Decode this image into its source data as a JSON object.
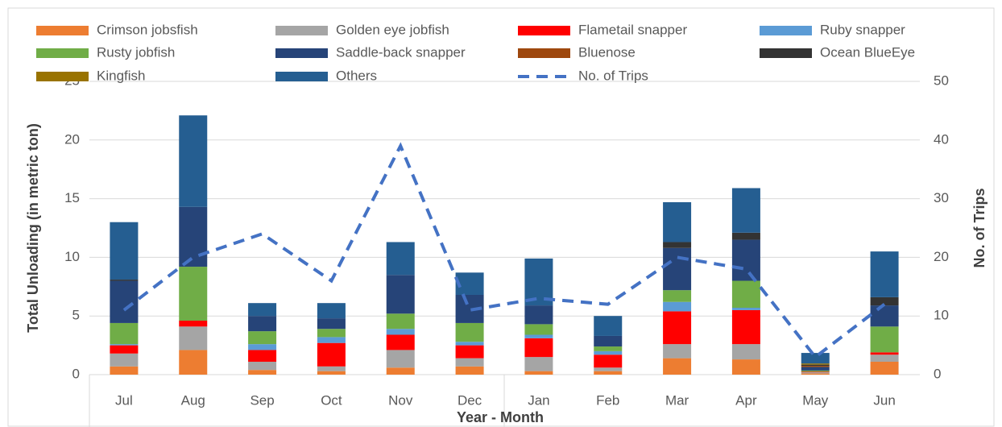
{
  "chart_data": {
    "type": "bar",
    "stacked": true,
    "x_label": "Year - Month",
    "y_label": "Total Unloading (in metric ton)",
    "y2_label": "No. of Trips",
    "categories": [
      "Jul",
      "Aug",
      "Sep",
      "Oct",
      "Nov",
      "Dec",
      "Jan",
      "Feb",
      "Mar",
      "Apr",
      "May",
      "Jun"
    ],
    "series": [
      {
        "name": "Crimson jobsfish",
        "color": "#ED7D31",
        "values": [
          0.7,
          2.1,
          0.4,
          0.3,
          0.6,
          0.7,
          0.3,
          0.3,
          1.4,
          1.3,
          0.1,
          1.1
        ]
      },
      {
        "name": "Golden eye jobfish",
        "color": "#A5A5A5",
        "values": [
          1.1,
          2.0,
          0.7,
          0.4,
          1.5,
          0.7,
          1.2,
          0.3,
          1.2,
          1.3,
          0.1,
          0.6
        ]
      },
      {
        "name": "Flametail snapper",
        "color": "#FF0000",
        "values": [
          0.7,
          0.5,
          1.0,
          2.0,
          1.3,
          1.1,
          1.6,
          1.1,
          2.8,
          2.9,
          0.05,
          0.2
        ]
      },
      {
        "name": "Ruby snapper",
        "color": "#5B9BD5",
        "values": [
          0.1,
          0,
          0.5,
          0.5,
          0.5,
          0.3,
          0.3,
          0.3,
          0.8,
          0.2,
          0,
          0
        ]
      },
      {
        "name": "Rusty jobfish",
        "color": "#70AD47",
        "values": [
          1.8,
          4.6,
          1.1,
          0.7,
          1.3,
          1.6,
          0.9,
          0.4,
          1.0,
          2.3,
          0.1,
          2.2
        ]
      },
      {
        "name": "Saddle-back snapper",
        "color": "#264478",
        "values": [
          3.6,
          5.1,
          1.3,
          0.9,
          3.3,
          2.4,
          1.6,
          0.9,
          3.6,
          3.5,
          0.3,
          1.8
        ]
      },
      {
        "name": "Bluenose",
        "color": "#9E480E",
        "values": [
          0,
          0,
          0,
          0,
          0,
          0,
          0,
          0,
          0,
          0,
          0.1,
          0
        ]
      },
      {
        "name": "Ocean BlueEye",
        "color": "#333333",
        "values": [
          0.1,
          0,
          0,
          0,
          0,
          0,
          0,
          0,
          0.5,
          0.6,
          0.1,
          0.7
        ]
      },
      {
        "name": "Kingfish",
        "color": "#997300",
        "values": [
          0,
          0,
          0,
          0,
          0,
          0,
          0,
          0,
          0,
          0,
          0.1,
          0
        ]
      },
      {
        "name": "Others",
        "color": "#255E91",
        "values": [
          4.9,
          7.8,
          1.1,
          1.3,
          2.8,
          1.9,
          4.0,
          1.7,
          3.4,
          3.8,
          0.9,
          3.9
        ]
      },
      {
        "name": "No. of Trips",
        "color": "#4472C4",
        "type": "line",
        "axis": "y2",
        "dashed": true,
        "values": [
          11,
          20,
          24,
          16,
          39,
          11,
          13,
          12,
          20,
          18,
          3,
          12
        ]
      }
    ],
    "ylim": [
      0,
      25
    ],
    "yticks": [
      0,
      5,
      10,
      15,
      20,
      25
    ],
    "y2lim": [
      0,
      50
    ],
    "y2ticks": [
      0,
      10,
      20,
      30,
      40,
      50
    ],
    "grid": true,
    "legend": "top"
  }
}
